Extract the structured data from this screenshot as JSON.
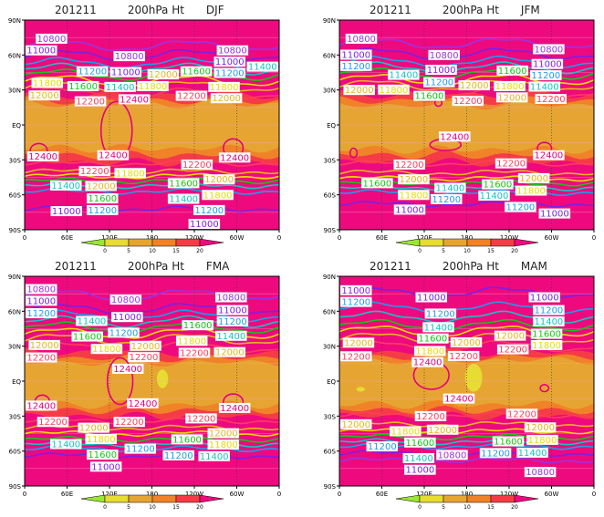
{
  "chart_data": {
    "type": "map-contour",
    "variable": "200hPa Ht",
    "axes": {
      "lon_ticks": [
        "0",
        "60E",
        "120E",
        "180",
        "120W",
        "60W",
        "0"
      ],
      "lat_ticks": [
        "90N",
        "60N",
        "30N",
        "EQ",
        "30S",
        "60S",
        "90S"
      ],
      "lon_range": [
        0,
        360
      ],
      "lat_range": [
        -90,
        90
      ]
    },
    "colorbar": {
      "labels": [
        "0",
        "5",
        "10",
        "15",
        "20"
      ],
      "colors": [
        "#9be632",
        "#e6dc32",
        "#e6a532",
        "#f08228",
        "#f53c46",
        "#ee0a7e"
      ]
    },
    "contour_colors": {
      "10800": "#9a32e6",
      "11000": "#7d1ee6",
      "11200": "#1e9bf0",
      "11400": "#14c3c3",
      "11600": "#10c810",
      "11800": "#e6dc00",
      "12000": "#e6b41e",
      "12200": "#ff3c5a",
      "12400": "#e6007d"
    },
    "panels": [
      {
        "date": "201211",
        "var": "200hPa Ht",
        "season": "DJF",
        "shading": [
          [
            -32,
            26
          ],
          [
            -26,
            21
          ],
          [
            -20,
            18
          ]
        ],
        "yellow": [],
        "contours": [
          [
            10800,
            68,
            null
          ],
          [
            11000,
            60,
            -72
          ],
          [
            11200,
            53,
            -57
          ],
          [
            11400,
            48,
            -52
          ],
          [
            11600,
            43,
            -48
          ],
          [
            11800,
            38,
            -44
          ],
          [
            12000,
            33,
            -40
          ],
          [
            12200,
            27,
            -33
          ]
        ],
        "loops": [
          [
            130,
            -5,
            22,
            25
          ],
          [
            20,
            -22,
            12,
            6
          ],
          [
            295,
            -20,
            14,
            8
          ]
        ],
        "labels": [
          [
            10800,
            38,
            74
          ],
          [
            11000,
            14,
            64
          ],
          [
            10800,
            148,
            59
          ],
          [
            11000,
            143,
            50
          ],
          [
            11200,
            137,
            46
          ],
          [
            11400,
            135,
            42
          ],
          [
            11600,
            124,
            38
          ],
          [
            11800,
            171,
            38
          ],
          [
            12000,
            165,
            34
          ],
          [
            11800,
            32,
            36
          ],
          [
            12000,
            28,
            30
          ],
          [
            12200,
            93,
            25
          ],
          [
            12400,
            155,
            22
          ],
          [
            12200,
            236,
            25
          ],
          [
            10800,
            294,
            64
          ],
          [
            11000,
            290,
            59
          ],
          [
            11200,
            290,
            54
          ],
          [
            11400,
            288,
            50
          ],
          [
            11600,
            284,
            46
          ],
          [
            11800,
            282,
            42
          ],
          [
            12000,
            275,
            37
          ],
          [
            12400,
            26,
            -27
          ],
          [
            12400,
            125,
            -26
          ],
          [
            12400,
            297,
            -28
          ],
          [
            12200,
            99,
            -35
          ],
          [
            12000,
            108,
            -43
          ],
          [
            11800,
            108,
            -46
          ],
          [
            11600,
            110,
            -49
          ],
          [
            11400,
            110,
            -52
          ],
          [
            11200,
            110,
            -59
          ],
          [
            11000,
            90,
            -74
          ],
          [
            12200,
            254,
            -34
          ],
          [
            12000,
            275,
            -42
          ],
          [
            11800,
            273,
            -46
          ],
          [
            11600,
            266,
            -50
          ],
          [
            11400,
            266,
            -54
          ],
          [
            11200,
            261,
            -59
          ],
          [
            11000,
            254,
            -81
          ]
        ]
      },
      {
        "date": "201211",
        "var": "200hPa Ht",
        "season": "JFM",
        "shading": [
          [
            -32,
            26
          ],
          [
            -26,
            21
          ],
          [
            -21,
            17
          ]
        ],
        "yellow": [],
        "contours": [
          [
            10800,
            70,
            null
          ],
          [
            11000,
            61,
            -68
          ],
          [
            11200,
            54,
            -58
          ],
          [
            11400,
            49,
            -54
          ],
          [
            11600,
            44,
            -50
          ],
          [
            11800,
            39,
            -46
          ],
          [
            12000,
            34,
            -41
          ],
          [
            12200,
            28,
            -33
          ]
        ],
        "loops": [
          [
            150,
            -17,
            22,
            5
          ],
          [
            140,
            19,
            5,
            3
          ],
          [
            290,
            -20,
            10,
            5
          ],
          [
            20,
            -24,
            5,
            4
          ]
        ],
        "labels": [
          [
            10800,
            31,
            74
          ],
          [
            11000,
            17,
            65
          ],
          [
            11200,
            11,
            60
          ],
          [
            10800,
            148,
            60
          ],
          [
            11000,
            144,
            52
          ],
          [
            11200,
            141,
            46
          ],
          [
            11400,
            132,
            43
          ],
          [
            11600,
            127,
            39
          ],
          [
            11800,
            118,
            35
          ],
          [
            12000,
            170,
            34
          ],
          [
            12200,
            161,
            30
          ],
          [
            12000,
            28,
            30
          ],
          [
            10800,
            296,
            65
          ],
          [
            11000,
            294,
            57
          ],
          [
            11200,
            292,
            52
          ],
          [
            11400,
            290,
            47
          ],
          [
            11600,
            286,
            42
          ],
          [
            11800,
            282,
            38
          ],
          [
            12000,
            275,
            33
          ],
          [
            12200,
            299,
            27
          ],
          [
            12400,
            163,
            -10
          ],
          [
            12400,
            296,
            -26
          ],
          [
            12200,
            99,
            -34
          ],
          [
            12000,
            105,
            -42
          ],
          [
            11800,
            105,
            -46
          ],
          [
            11600,
            105,
            -50
          ],
          [
            11400,
            105,
            -54
          ],
          [
            11200,
            110,
            -59
          ],
          [
            11000,
            120,
            -68
          ],
          [
            12200,
            253,
            -33
          ],
          [
            12000,
            275,
            -41
          ],
          [
            11800,
            271,
            -47
          ],
          [
            11600,
            265,
            -51
          ],
          [
            11400,
            260,
            -56
          ],
          [
            11200,
            256,
            -61
          ],
          [
            11000,
            294,
            -76
          ]
        ]
      },
      {
        "date": "201211",
        "var": "200hPa Ht",
        "season": "FMA",
        "shading": [
          [
            -30,
            25
          ],
          [
            -25,
            20
          ],
          [
            -20,
            16
          ]
        ],
        "yellow": [
          [
            195,
            2,
            8,
            8
          ]
        ],
        "contours": [
          [
            10800,
            74,
            null
          ],
          [
            11000,
            62,
            -64
          ],
          [
            11200,
            56,
            -58
          ],
          [
            11400,
            51,
            -54
          ],
          [
            11600,
            46,
            -50
          ],
          [
            11800,
            41,
            -45
          ],
          [
            12000,
            36,
            -40
          ],
          [
            12200,
            29,
            -34
          ]
        ],
        "loops": [
          [
            135,
            0,
            18,
            20
          ],
          [
            25,
            -17,
            10,
            5
          ],
          [
            295,
            -18,
            14,
            7
          ]
        ],
        "labels": [
          [
            10800,
            21,
            79
          ],
          [
            11000,
            14,
            69
          ],
          [
            11200,
            8,
            63
          ],
          [
            10800,
            143,
            70
          ],
          [
            11000,
            145,
            55
          ],
          [
            11200,
            140,
            51
          ],
          [
            11400,
            136,
            47
          ],
          [
            11600,
            130,
            43
          ],
          [
            11800,
            116,
            37
          ],
          [
            12000,
            171,
            35
          ],
          [
            12200,
            158,
            30
          ],
          [
            12000,
            28,
            31
          ],
          [
            12200,
            17,
            25
          ],
          [
            12400,
            146,
            20
          ],
          [
            10800,
            292,
            72
          ],
          [
            11000,
            294,
            61
          ],
          [
            11200,
            294,
            56
          ],
          [
            11400,
            292,
            53
          ],
          [
            11600,
            286,
            48
          ],
          [
            11800,
            288,
            44
          ],
          [
            12000,
            290,
            39
          ],
          [
            12200,
            271,
            29
          ],
          [
            12400,
            23,
            -21
          ],
          [
            12400,
            167,
            -19
          ],
          [
            12400,
            297,
            -23
          ],
          [
            12200,
            40,
            -35
          ],
          [
            12200,
            148,
            -35
          ],
          [
            12200,
            260,
            -32
          ],
          [
            12000,
            108,
            -40
          ],
          [
            11800,
            108,
            -45
          ],
          [
            11600,
            110,
            -49
          ],
          [
            11400,
            110,
            -54
          ],
          [
            11200,
            112,
            -58
          ],
          [
            11000,
            115,
            -64
          ],
          [
            12000,
            281,
            -40
          ],
          [
            11800,
            281,
            -45
          ],
          [
            11600,
            271,
            -50
          ],
          [
            11400,
            268,
            -55
          ],
          [
            11200,
            259,
            -59
          ]
        ]
      },
      {
        "date": "201211",
        "var": "200hPa Ht",
        "season": "MAM",
        "shading": [
          [
            -30,
            25
          ],
          [
            -25,
            21
          ],
          [
            -20,
            18
          ]
        ],
        "yellow": [
          [
            190,
            3,
            12,
            12
          ],
          [
            30,
            -7,
            6,
            2
          ]
        ],
        "contours": [
          [
            10800,
            null,
            -68
          ],
          [
            11000,
            76,
            -62
          ],
          [
            11200,
            63,
            -56
          ],
          [
            11400,
            55,
            -52
          ],
          [
            11600,
            48,
            -48
          ],
          [
            11800,
            43,
            -43
          ],
          [
            12000,
            37,
            -37
          ],
          [
            12200,
            30,
            -29
          ]
        ],
        "loops": [
          [
            130,
            5,
            25,
            12
          ],
          [
            290,
            -6,
            6,
            3
          ]
        ],
        "labels": [
          [
            11000,
            12,
            78
          ],
          [
            11200,
            14,
            68
          ],
          [
            11000,
            130,
            72
          ],
          [
            11000,
            290,
            72
          ],
          [
            11200,
            143,
            58
          ],
          [
            11400,
            140,
            51
          ],
          [
            11600,
            132,
            46
          ],
          [
            11800,
            128,
            40
          ],
          [
            12000,
            169,
            38
          ],
          [
            12200,
            155,
            31
          ],
          [
            12000,
            27,
            33
          ],
          [
            12200,
            19,
            26
          ],
          [
            12400,
            135,
            21
          ],
          [
            12400,
            169,
            -15
          ],
          [
            11200,
            296,
            61
          ],
          [
            11400,
            296,
            56
          ],
          [
            11600,
            293,
            50
          ],
          [
            11800,
            293,
            45
          ],
          [
            12000,
            293,
            39
          ],
          [
            12200,
            266,
            32
          ],
          [
            12200,
            129,
            -30
          ],
          [
            12000,
            146,
            -37
          ],
          [
            12000,
            14,
            -37
          ],
          [
            11800,
            114,
            -43
          ],
          [
            11600,
            114,
            -48
          ],
          [
            11400,
            112,
            -52
          ],
          [
            11200,
            112,
            -56
          ],
          [
            11000,
            114,
            -62
          ],
          [
            10800,
            118,
            -68
          ],
          [
            12200,
            258,
            -28
          ],
          [
            12000,
            284,
            -35
          ],
          [
            11800,
            287,
            -41
          ],
          [
            11600,
            280,
            -47
          ],
          [
            11400,
            273,
            -52
          ],
          [
            11200,
            262,
            -57
          ],
          [
            10800,
            284,
            -78
          ]
        ]
      }
    ]
  }
}
